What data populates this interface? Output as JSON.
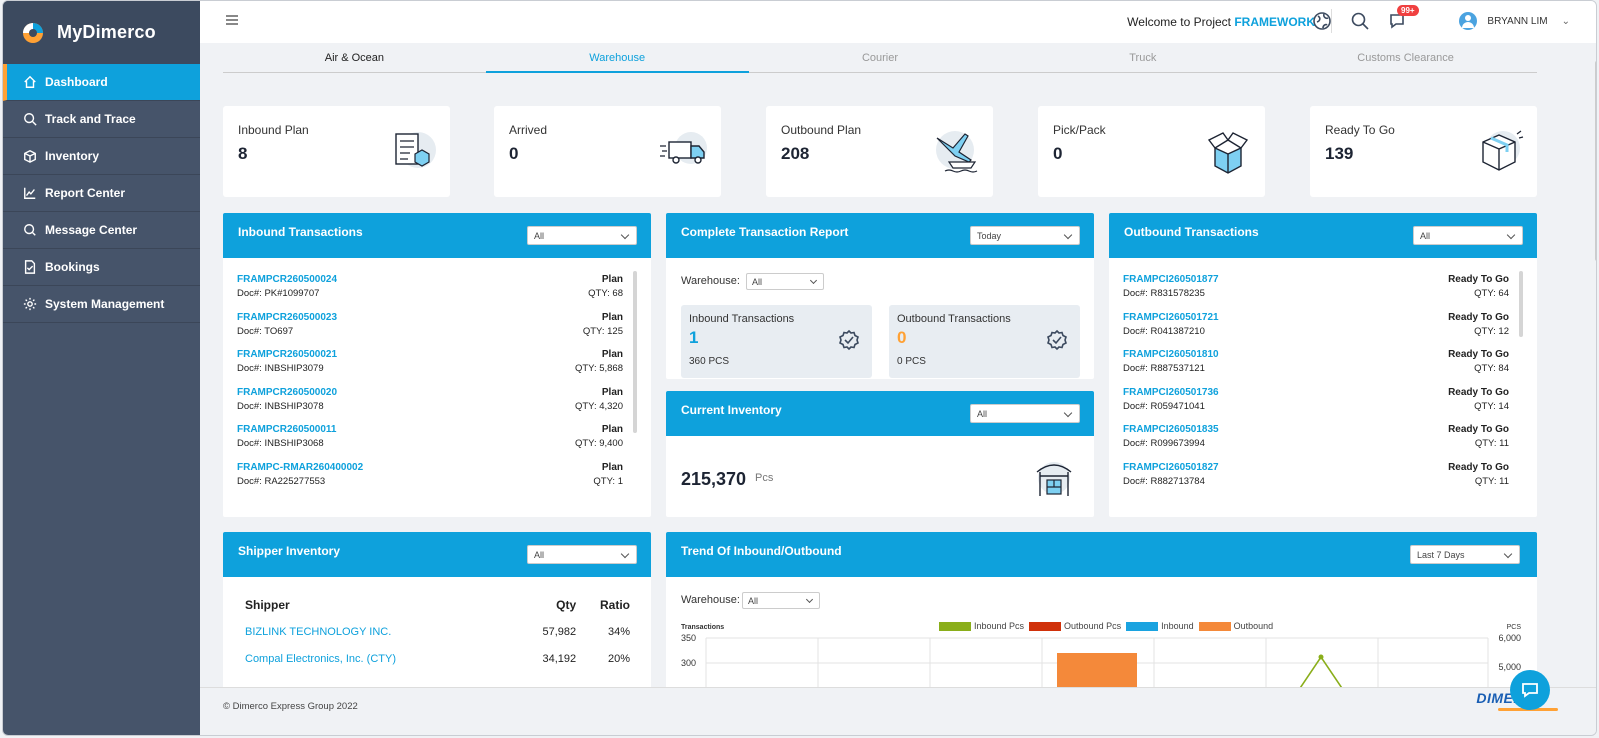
{
  "brand": {
    "name": "MyDimerco"
  },
  "sidebar": {
    "items": [
      {
        "label": "Dashboard",
        "icon": "home-icon",
        "active": true
      },
      {
        "label": "Track and Trace",
        "icon": "search-icon"
      },
      {
        "label": "Inventory",
        "icon": "box-icon"
      },
      {
        "label": "Report Center",
        "icon": "chart-icon"
      },
      {
        "label": "Message Center",
        "icon": "message-icon"
      },
      {
        "label": "Bookings",
        "icon": "booking-icon"
      },
      {
        "label": "System Management",
        "icon": "gear-icon"
      }
    ]
  },
  "header": {
    "welcome_prefix": "Welcome to Project",
    "project": "FRAMEWORK",
    "badge": "99+",
    "user": "BRYANN LIM"
  },
  "tabs": [
    "Air & Ocean",
    "Warehouse",
    "Courier",
    "Truck",
    "Customs Clearance"
  ],
  "kpis": [
    {
      "label": "Inbound Plan",
      "value": "8",
      "icon": "inbound-plan-icon"
    },
    {
      "label": "Arrived",
      "value": "0",
      "icon": "truck-icon"
    },
    {
      "label": "Outbound Plan",
      "value": "208",
      "icon": "plane-ship-icon"
    },
    {
      "label": "Pick/Pack",
      "value": "0",
      "icon": "open-box-icon"
    },
    {
      "label": "Ready To Go",
      "value": "139",
      "icon": "package-icon"
    }
  ],
  "inbound": {
    "title": "Inbound Transactions",
    "filter": "All",
    "rows": [
      {
        "id": "FRAMPCR260500024",
        "doc": "Doc#: PK#1099707",
        "status": "Plan",
        "qty": "QTY: 68"
      },
      {
        "id": "FRAMPCR260500023",
        "doc": "Doc#: TO697",
        "status": "Plan",
        "qty": "QTY: 125"
      },
      {
        "id": "FRAMPCR260500021",
        "doc": "Doc#: INBSHIP3079",
        "status": "Plan",
        "qty": "QTY: 5,868"
      },
      {
        "id": "FRAMPCR260500020",
        "doc": "Doc#: INBSHIP3078",
        "status": "Plan",
        "qty": "QTY: 4,320"
      },
      {
        "id": "FRAMPCR260500011",
        "doc": "Doc#: INBSHIP3068",
        "status": "Plan",
        "qty": "QTY: 9,400"
      },
      {
        "id": "FRAMPC-RMAR260400002",
        "doc": "Doc#: RA225277553",
        "status": "Plan",
        "qty": "QTY: 1"
      }
    ]
  },
  "complete": {
    "title": "Complete Transaction Report",
    "filter": "Today",
    "warehouse_label": "Warehouse:",
    "warehouse_value": "All",
    "inbound_label": "Inbound Transactions",
    "inbound_count": "1",
    "inbound_pcs": "360 PCS",
    "outbound_label": "Outbound Transactions",
    "outbound_count": "0",
    "outbound_pcs": "0 PCS"
  },
  "current_inventory": {
    "title": "Current Inventory",
    "filter": "All",
    "value": "215,370",
    "unit": "Pcs"
  },
  "outbound": {
    "title": "Outbound Transactions",
    "filter": "All",
    "rows": [
      {
        "id": "FRAMPCI260501877",
        "doc": "Doc#: R831578235",
        "status": "Ready To Go",
        "qty": "QTY: 64"
      },
      {
        "id": "FRAMPCI260501721",
        "doc": "Doc#: R041387210",
        "status": "Ready To Go",
        "qty": "QTY: 12"
      },
      {
        "id": "FRAMPCI260501810",
        "doc": "Doc#: R887537121",
        "status": "Ready To Go",
        "qty": "QTY: 84"
      },
      {
        "id": "FRAMPCI260501736",
        "doc": "Doc#: R059471041",
        "status": "Ready To Go",
        "qty": "QTY: 14"
      },
      {
        "id": "FRAMPCI260501835",
        "doc": "Doc#: R099673994",
        "status": "Ready To Go",
        "qty": "QTY: 11"
      },
      {
        "id": "FRAMPCI260501827",
        "doc": "Doc#: R882713784",
        "status": "Ready To Go",
        "qty": "QTY: 11"
      }
    ]
  },
  "shipper": {
    "title": "Shipper Inventory",
    "filter": "All",
    "headers": [
      "Shipper",
      "Qty",
      "Ratio"
    ],
    "rows": [
      {
        "name": "BIZLINK TECHNOLOGY INC.",
        "qty": "57,982",
        "ratio": "34%"
      },
      {
        "name": "Compal Electronics, Inc. (CTY)",
        "qty": "34,192",
        "ratio": "20%"
      }
    ]
  },
  "trend": {
    "title": "Trend Of Inbound/Outbound",
    "filter": "Last 7 Days",
    "warehouse_label": "Warehouse:",
    "warehouse_value": "All",
    "left_axis": "Transactions",
    "right_axis": "PCS",
    "left_ticks": [
      "350",
      "300"
    ],
    "right_ticks": [
      "6,000",
      "5,000"
    ],
    "legend": [
      {
        "name": "Inbound Pcs",
        "color": "#8aae1a"
      },
      {
        "name": "Outbound Pcs",
        "color": "#d0310a"
      },
      {
        "name": "Inbound",
        "color": "#1aa3e0"
      },
      {
        "name": "Outbound",
        "color": "#f4893a"
      }
    ]
  },
  "footer": {
    "copyright": "© Dimerco Express Group 2022",
    "logo": "DIMERCO"
  }
}
